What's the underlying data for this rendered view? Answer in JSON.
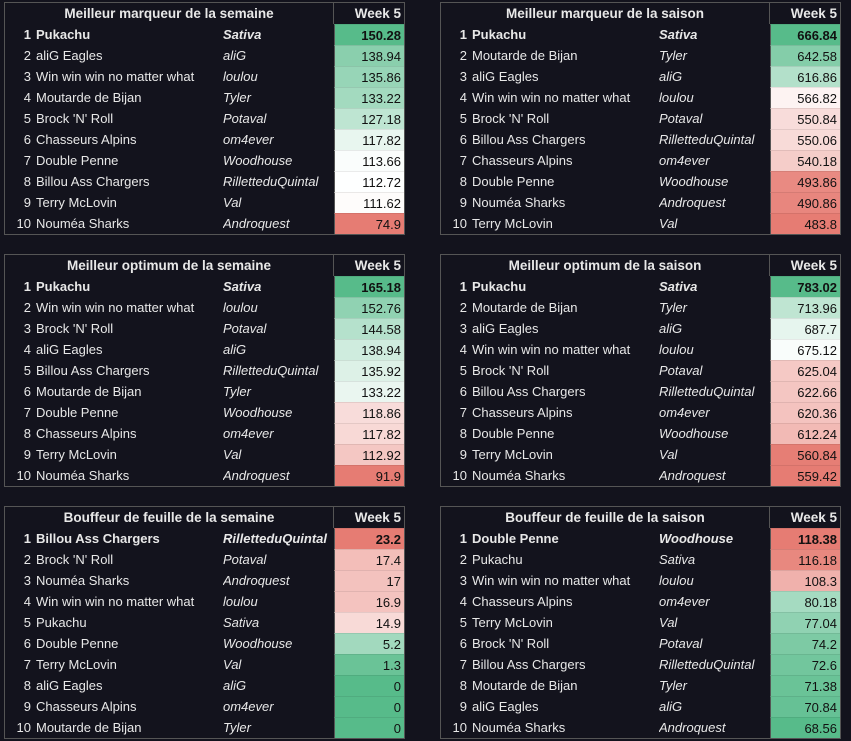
{
  "colors": {
    "high": "#57bb8a",
    "mid": "#ffffff",
    "low": "#e67c73",
    "background": "#13131d"
  },
  "tables": [
    {
      "title": "Meilleur marqueur de la semaine",
      "week": "Week 5",
      "scale": "high-green",
      "rows": [
        [
          "1",
          "Pukachu",
          "Sativa",
          "150.28"
        ],
        [
          "2",
          "aliG Eagles",
          "aliG",
          "138.94"
        ],
        [
          "3",
          "Win win win no matter what",
          "loulou",
          "135.86"
        ],
        [
          "4",
          "Moutarde de Bijan",
          "Tyler",
          "133.22"
        ],
        [
          "5",
          "Brock 'N' Roll",
          "Potaval",
          "127.18"
        ],
        [
          "6",
          "Chasseurs Alpins",
          "om4ever",
          "117.82"
        ],
        [
          "7",
          "Double Penne",
          "Woodhouse",
          "113.66"
        ],
        [
          "8",
          "Billou Ass Chargers",
          "RilletteduQuintal",
          "112.72"
        ],
        [
          "9",
          "Terry McLovin",
          "Val",
          "111.62"
        ],
        [
          "10",
          "Nouméa Sharks",
          "Androquest",
          "74.9"
        ]
      ]
    },
    {
      "title": "Meilleur marqueur de la saison",
      "week": "Week 5",
      "scale": "high-green",
      "rows": [
        [
          "1",
          "Pukachu",
          "Sativa",
          "666.84"
        ],
        [
          "2",
          "Moutarde de Bijan",
          "Tyler",
          "642.58"
        ],
        [
          "3",
          "aliG Eagles",
          "aliG",
          "616.86"
        ],
        [
          "4",
          "Win win win no matter what",
          "loulou",
          "566.82"
        ],
        [
          "5",
          "Brock 'N' Roll",
          "Potaval",
          "550.84"
        ],
        [
          "6",
          "Billou Ass Chargers",
          "RilletteduQuintal",
          "550.06"
        ],
        [
          "7",
          "Chasseurs Alpins",
          "om4ever",
          "540.18"
        ],
        [
          "8",
          "Double Penne",
          "Woodhouse",
          "493.86"
        ],
        [
          "9",
          "Nouméa Sharks",
          "Androquest",
          "490.86"
        ],
        [
          "10",
          "Terry McLovin",
          "Val",
          "483.8"
        ]
      ]
    },
    {
      "title": "Meilleur optimum de la semaine",
      "week": "Week 5",
      "scale": "high-green",
      "rows": [
        [
          "1",
          "Pukachu",
          "Sativa",
          "165.18"
        ],
        [
          "2",
          "Win win win no matter what",
          "loulou",
          "152.76"
        ],
        [
          "3",
          "Brock 'N' Roll",
          "Potaval",
          "144.58"
        ],
        [
          "4",
          "aliG Eagles",
          "aliG",
          "138.94"
        ],
        [
          "5",
          "Billou Ass Chargers",
          "RilletteduQuintal",
          "135.92"
        ],
        [
          "6",
          "Moutarde de Bijan",
          "Tyler",
          "133.22"
        ],
        [
          "7",
          "Double Penne",
          "Woodhouse",
          "118.86"
        ],
        [
          "8",
          "Chasseurs Alpins",
          "om4ever",
          "117.82"
        ],
        [
          "9",
          "Terry McLovin",
          "Val",
          "112.92"
        ],
        [
          "10",
          "Nouméa Sharks",
          "Androquest",
          "91.9"
        ]
      ]
    },
    {
      "title": "Meilleur optimum de la saison",
      "week": "Week 5",
      "scale": "high-green",
      "rows": [
        [
          "1",
          "Pukachu",
          "Sativa",
          "783.02"
        ],
        [
          "2",
          "Moutarde de Bijan",
          "Tyler",
          "713.96"
        ],
        [
          "3",
          "aliG Eagles",
          "aliG",
          "687.7"
        ],
        [
          "4",
          "Win win win no matter what",
          "loulou",
          "675.12"
        ],
        [
          "5",
          "Brock 'N' Roll",
          "Potaval",
          "625.04"
        ],
        [
          "6",
          "Billou Ass Chargers",
          "RilletteduQuintal",
          "622.66"
        ],
        [
          "7",
          "Chasseurs Alpins",
          "om4ever",
          "620.36"
        ],
        [
          "8",
          "Double Penne",
          "Woodhouse",
          "612.24"
        ],
        [
          "9",
          "Terry McLovin",
          "Val",
          "560.84"
        ],
        [
          "10",
          "Nouméa Sharks",
          "Androquest",
          "559.42"
        ]
      ]
    },
    {
      "title": "Bouffeur de feuille de la semaine",
      "week": "Week 5",
      "scale": "high-red",
      "rows": [
        [
          "1",
          "Billou Ass Chargers",
          "RilletteduQuintal",
          "23.2"
        ],
        [
          "2",
          "Brock 'N' Roll",
          "Potaval",
          "17.4"
        ],
        [
          "3",
          "Nouméa Sharks",
          "Androquest",
          "17"
        ],
        [
          "4",
          "Win win win no matter what",
          "loulou",
          "16.9"
        ],
        [
          "5",
          "Pukachu",
          "Sativa",
          "14.9"
        ],
        [
          "6",
          "Double Penne",
          "Woodhouse",
          "5.2"
        ],
        [
          "7",
          "Terry McLovin",
          "Val",
          "1.3"
        ],
        [
          "8",
          "aliG Eagles",
          "aliG",
          "0"
        ],
        [
          "9",
          "Chasseurs Alpins",
          "om4ever",
          "0"
        ],
        [
          "10",
          "Moutarde de Bijan",
          "Tyler",
          "0"
        ]
      ]
    },
    {
      "title": "Bouffeur de feuille de la saison",
      "week": "Week 5",
      "scale": "high-red",
      "rows": [
        [
          "1",
          "Double Penne",
          "Woodhouse",
          "118.38"
        ],
        [
          "2",
          "Pukachu",
          "Sativa",
          "116.18"
        ],
        [
          "3",
          "Win win win no matter what",
          "loulou",
          "108.3"
        ],
        [
          "4",
          "Chasseurs Alpins",
          "om4ever",
          "80.18"
        ],
        [
          "5",
          "Terry McLovin",
          "Val",
          "77.04"
        ],
        [
          "6",
          "Brock 'N' Roll",
          "Potaval",
          "74.2"
        ],
        [
          "7",
          "Billou Ass Chargers",
          "RilletteduQuintal",
          "72.6"
        ],
        [
          "8",
          "Moutarde de Bijan",
          "Tyler",
          "71.38"
        ],
        [
          "9",
          "aliG Eagles",
          "aliG",
          "70.84"
        ],
        [
          "10",
          "Nouméa Sharks",
          "Androquest",
          "68.56"
        ]
      ]
    }
  ]
}
